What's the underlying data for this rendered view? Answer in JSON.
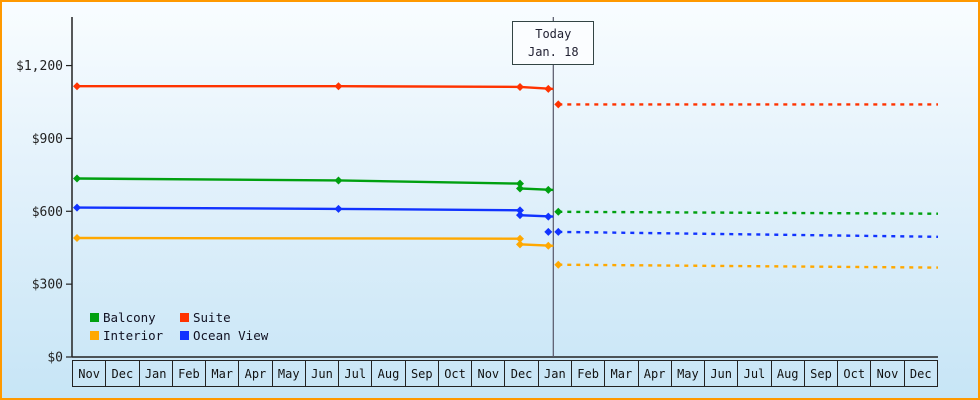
{
  "frame": {
    "border_color": "#ff9900",
    "accent_axis_color": "#222222"
  },
  "chart_data": {
    "type": "line",
    "title": "",
    "x_axis": {
      "unit": "month",
      "months": [
        "Nov",
        "Dec",
        "Jan",
        "Feb",
        "Mar",
        "Apr",
        "May",
        "Jun",
        "Jul",
        "Aug",
        "Sep",
        "Oct",
        "Nov",
        "Dec",
        "Jan",
        "Feb",
        "Mar",
        "Apr",
        "May",
        "Jun",
        "Jul",
        "Aug",
        "Sep",
        "Oct",
        "Nov",
        "Dec"
      ]
    },
    "y_axis": {
      "ticks": [
        0,
        300,
        600,
        900,
        1200
      ],
      "labels": [
        "$0",
        "$300",
        "$600",
        "$900",
        "$1,200"
      ],
      "max": 1400,
      "ylim": [
        0,
        1400
      ]
    },
    "today_line": {
      "x": 14.45,
      "label_line1": "Today",
      "label_line2": "Jan. 18",
      "line_color": "#556"
    },
    "series": [
      {
        "name": "Balcony",
        "color": "#00a010",
        "solid": [
          [
            0.15,
            735
          ],
          [
            8,
            727
          ],
          [
            13.45,
            714
          ],
          [
            13.45,
            694
          ],
          [
            14.45,
            688
          ]
        ],
        "dotted": [
          [
            14.6,
            598
          ],
          [
            26,
            590
          ]
        ],
        "markers": [
          [
            0.15,
            735
          ],
          [
            8,
            727
          ],
          [
            13.45,
            714
          ],
          [
            13.45,
            694
          ],
          [
            14.3,
            688
          ],
          [
            14.6,
            598
          ]
        ]
      },
      {
        "name": "Suite",
        "color": "#ff3300",
        "solid": [
          [
            0.15,
            1115
          ],
          [
            8,
            1115
          ],
          [
            13.45,
            1112
          ],
          [
            14.45,
            1104
          ]
        ],
        "dotted": [
          [
            14.6,
            1040
          ],
          [
            26,
            1040
          ]
        ],
        "markers": [
          [
            0.15,
            1115
          ],
          [
            8,
            1115
          ],
          [
            13.45,
            1112
          ],
          [
            14.3,
            1104
          ],
          [
            14.6,
            1040
          ]
        ]
      },
      {
        "name": "Interior",
        "color": "#ffa800",
        "solid": [
          [
            0.15,
            490
          ],
          [
            13.45,
            487
          ],
          [
            13.45,
            464
          ],
          [
            14.45,
            458
          ]
        ],
        "dotted": [
          [
            14.6,
            380
          ],
          [
            26,
            368
          ]
        ],
        "markers": [
          [
            0.15,
            490
          ],
          [
            13.45,
            487
          ],
          [
            13.45,
            464
          ],
          [
            14.3,
            458
          ],
          [
            14.6,
            380
          ]
        ]
      },
      {
        "name": "Ocean View",
        "color": "#1133ff",
        "solid": [
          [
            0.15,
            615
          ],
          [
            8,
            610
          ],
          [
            13.45,
            604
          ],
          [
            13.45,
            584
          ],
          [
            14.45,
            578
          ]
        ],
        "dotted": [
          [
            14.6,
            515
          ],
          [
            26,
            495
          ]
        ],
        "markers": [
          [
            0.15,
            615
          ],
          [
            8,
            610
          ],
          [
            13.45,
            604
          ],
          [
            13.45,
            584
          ],
          [
            14.3,
            578
          ],
          [
            14.3,
            515
          ],
          [
            14.6,
            515
          ]
        ]
      }
    ],
    "legend": {
      "position": "bottom-left",
      "entries": [
        "Balcony",
        "Suite",
        "Interior",
        "Ocean View"
      ]
    },
    "grid": false
  }
}
